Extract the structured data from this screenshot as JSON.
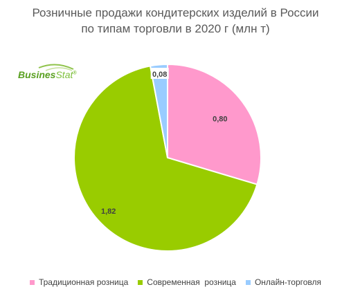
{
  "chart_data": {
    "type": "pie",
    "title_line1": "Розничные продажи кондитерских изделий в России",
    "title_line2": "по типам торговли в 2020 г (млн т)",
    "series": [
      {
        "name": "Традиционная розница",
        "value": 0.8,
        "label": "0,80",
        "color": "#ff99cc"
      },
      {
        "name": "Современная  розница",
        "value": 1.82,
        "label": "1,82",
        "color": "#99cc00"
      },
      {
        "name": "Онлайн-торговля",
        "value": 0.08,
        "label": "0,08",
        "color": "#99ccff"
      }
    ],
    "legend_position": "bottom",
    "start_angle_deg": 0,
    "direction": "clockwise"
  },
  "logo": {
    "text_main": "Busines",
    "text_stat": "Stat",
    "mark": "®"
  }
}
